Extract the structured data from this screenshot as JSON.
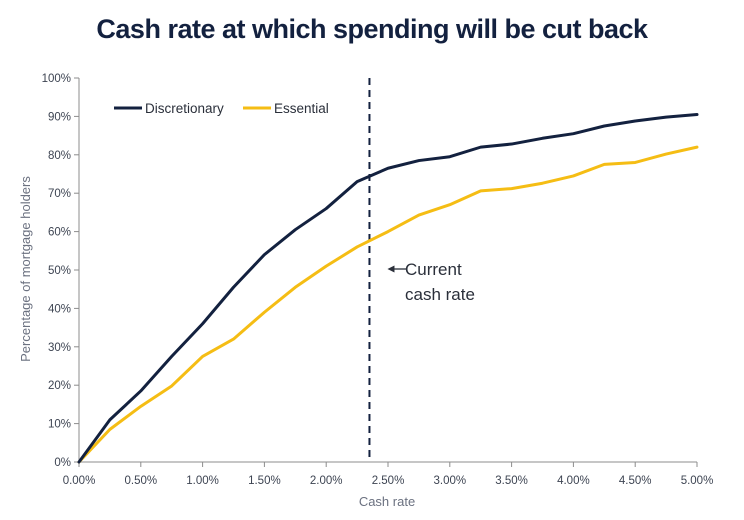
{
  "colors": {
    "discretionary": "#13213f",
    "essential": "#f5bd14",
    "axis": "#8c8c8c",
    "reference_line": "#13213f",
    "title": "#13213f"
  },
  "chart_data": {
    "type": "line",
    "title": "Cash rate at which spending will be cut back",
    "xlabel": "Cash rate",
    "ylabel": "Percentage of mortgage holders",
    "xlim": [
      0,
      5
    ],
    "ylim": [
      0,
      100
    ],
    "x_ticks": [
      "0.00%",
      "0.50%",
      "1.00%",
      "1.50%",
      "2.00%",
      "2.50%",
      "3.00%",
      "3.50%",
      "4.00%",
      "4.50%",
      "5.00%"
    ],
    "y_ticks": [
      "0%",
      "10%",
      "20%",
      "30%",
      "40%",
      "50%",
      "60%",
      "70%",
      "80%",
      "90%",
      "100%"
    ],
    "grid": false,
    "legend_position": "top-left",
    "x": [
      0,
      0.25,
      0.5,
      0.75,
      1.0,
      1.25,
      1.5,
      1.75,
      2.0,
      2.25,
      2.5,
      2.75,
      3.0,
      3.25,
      3.5,
      3.75,
      4.0,
      4.25,
      4.5,
      4.75,
      5.0
    ],
    "series": [
      {
        "name": "Discretionary",
        "values": [
          0,
          11,
          18.5,
          27.5,
          36,
          45.5,
          54,
          60.5,
          66,
          73,
          76.5,
          78.5,
          79.5,
          82,
          82.8,
          84.3,
          85.5,
          87.5,
          88.8,
          89.8,
          90.5
        ]
      },
      {
        "name": "Essential",
        "values": [
          0,
          8.5,
          14.5,
          19.8,
          27.5,
          32,
          39,
          45.5,
          51,
          56,
          60,
          64.3,
          67,
          70.6,
          71.2,
          72.6,
          74.5,
          77.5,
          78,
          80.2,
          82
        ]
      }
    ],
    "reference_line": {
      "x": 2.35,
      "label_line1": "Current",
      "label_line2": "cash rate"
    }
  }
}
